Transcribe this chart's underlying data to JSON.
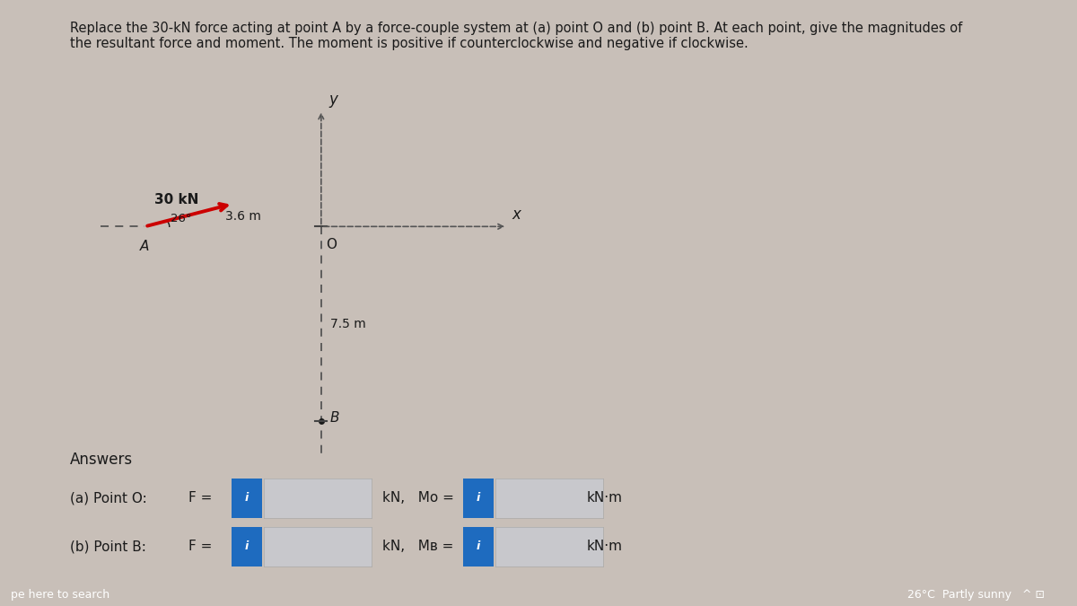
{
  "title_text": "Replace the 30-kN force acting at point A by a force-couple system at (a) point O and (b) point B. At each point, give the magnitudes of\nthe resultant force and moment. The moment is positive if counterclockwise and negative if clockwise.",
  "title_fontsize": 10.5,
  "bg_color_left": "#e8e4e0",
  "bg_color_right": "#c8bfb8",
  "text_color": "#1a1a1a",
  "force_label": "30 kN",
  "angle_label": "26°",
  "dist_AO_label": "3.6 m",
  "dist_OB_label": "7.5 m",
  "point_A_label": "A",
  "point_O_label": "O",
  "point_B_label": "B",
  "x_label": "x",
  "y_label": "y",
  "answer_label": "Answers",
  "point_O_answer_1": "(a) Point O:",
  "point_O_answer_2": "F =",
  "point_B_answer_1": "(b) Point B:",
  "point_B_answer_2": "F =",
  "kN_label": "kN,",
  "Mo_label": "Mo =",
  "MB_label": "Mʙ =",
  "kNm_label": "kN·m",
  "box_blue_color": "#1e6bbf",
  "box_empty_color": "#c8c8cc",
  "box_text": "i",
  "arrow_color": "#cc0000",
  "axis_color": "#444444",
  "dashed_color": "#555555",
  "taskbar_color": "#1a1a1a",
  "taskbar_text": "26°C  Partly sunny",
  "taskbar_left": "pe here to search"
}
